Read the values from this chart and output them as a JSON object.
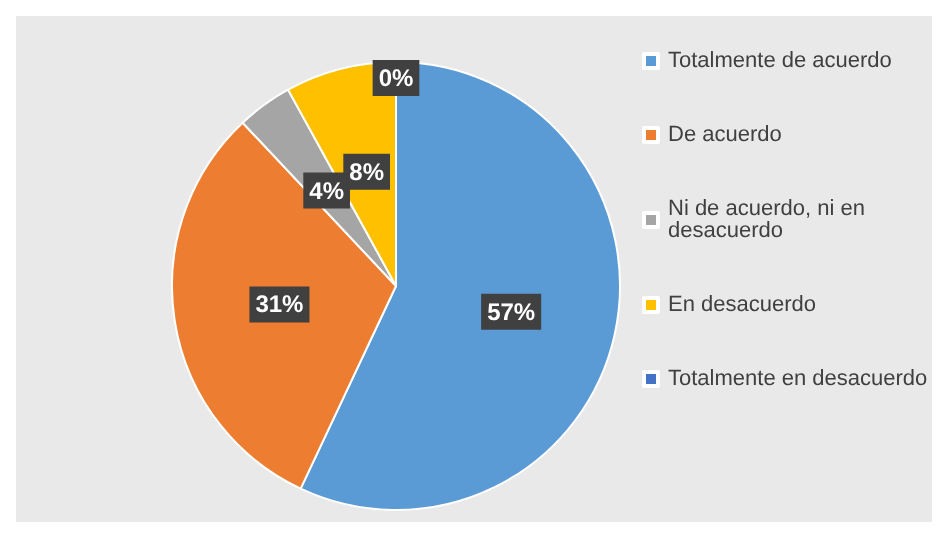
{
  "chart_data": {
    "type": "pie",
    "categories": [
      "Totalmente de acuerdo",
      "De acuerdo",
      "Ni de acuerdo, ni en desacuerdo",
      "En desacuerdo",
      "Totalmente en desacuerdo"
    ],
    "values": [
      57,
      31,
      4,
      8,
      0
    ],
    "colors": [
      "#5b9bd5",
      "#ed7d31",
      "#a5a5a5",
      "#ffc000",
      "#4472c4"
    ],
    "value_labels": [
      "57%",
      "31%",
      "4%",
      "8%",
      "0%"
    ],
    "legend": "right"
  }
}
